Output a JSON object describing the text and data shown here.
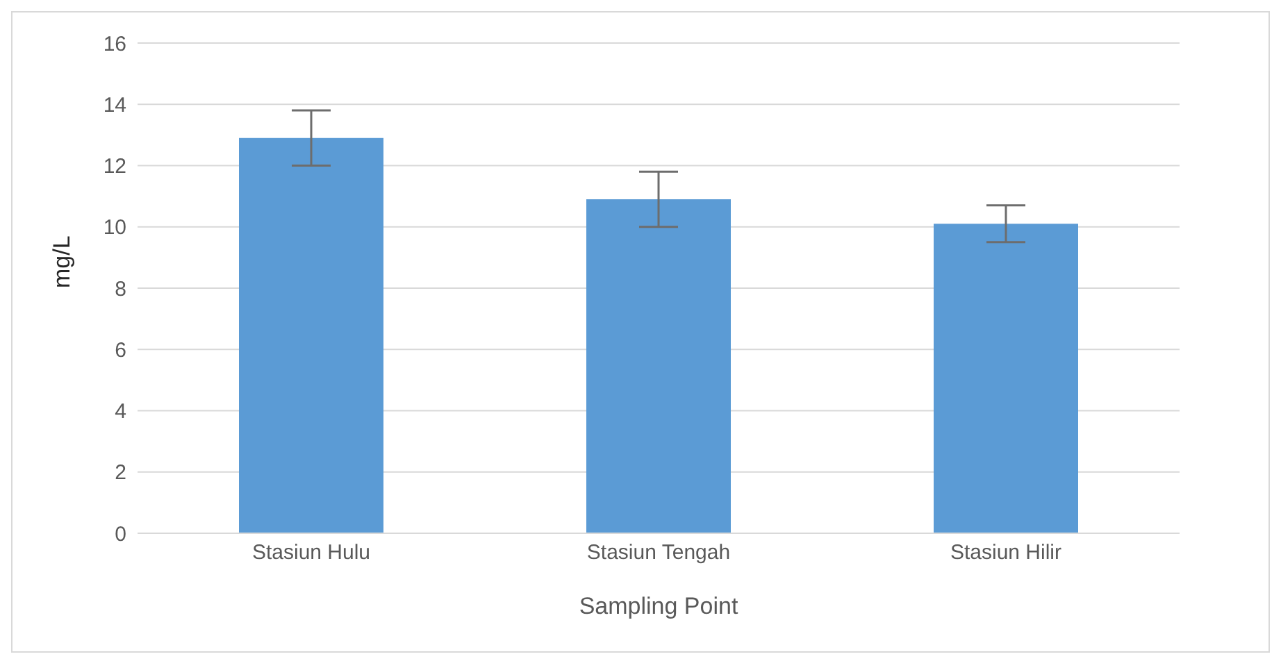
{
  "chart_data": {
    "type": "bar",
    "xlabel": "Sampling Point",
    "ylabel": "mg/L",
    "categories": [
      "Stasiun Hulu",
      "Stasiun Tengah",
      "Stasiun Hilir"
    ],
    "values": [
      12.9,
      10.9,
      10.1
    ],
    "errors": [
      0.9,
      0.9,
      0.6
    ],
    "color": "#5b9bd5",
    "ylim": [
      0,
      16
    ],
    "yticks": [
      0,
      2,
      4,
      6,
      8,
      10,
      12,
      14,
      16
    ],
    "grid": "y"
  }
}
